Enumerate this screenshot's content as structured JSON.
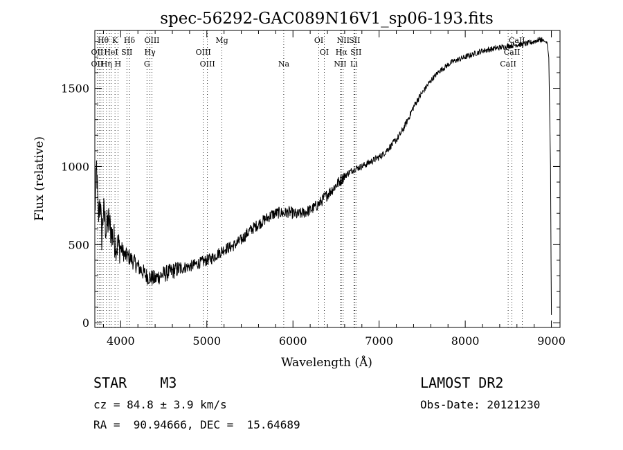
{
  "chart_data": {
    "type": "line",
    "title": "spec-56292-GAC089N16V1_sp06-193.fits",
    "xlabel": "Wavelength (Å)",
    "ylabel": "Flux (relative)",
    "xlim": [
      3700,
      9100
    ],
    "ylim": [
      -30,
      1870
    ],
    "xticks": [
      4000,
      5000,
      6000,
      7000,
      8000,
      9000
    ],
    "xtick_labels": [
      "4000",
      "5000",
      "6000",
      "7000",
      "8000",
      "9000"
    ],
    "yticks": [
      0,
      500,
      1000,
      1500
    ],
    "ytick_labels": [
      "0",
      "500",
      "1000",
      "1500"
    ],
    "grid": false,
    "series": [
      {
        "x": [
          3700,
          3720,
          3740,
          3760,
          3780,
          3800,
          3830,
          3860,
          3900,
          3950,
          4000,
          4050,
          4100,
          4150,
          4200,
          4250,
          4300,
          4350,
          4400,
          4450,
          4500,
          4550,
          4600,
          4650,
          4700,
          4750,
          4800,
          4850,
          4900,
          4950,
          5000,
          5050,
          5100,
          5150,
          5200,
          5250,
          5300,
          5350,
          5400,
          5450,
          5500,
          5550,
          5600,
          5650,
          5700,
          5750,
          5800,
          5850,
          5900,
          5950,
          6000,
          6050,
          6100,
          6150,
          6200,
          6250,
          6300,
          6350,
          6400,
          6450,
          6500,
          6550,
          6600,
          6650,
          6700,
          6750,
          6800,
          6850,
          6900,
          6950,
          7000,
          7050,
          7100,
          7150,
          7200,
          7250,
          7300,
          7350,
          7400,
          7450,
          7500,
          7550,
          7600,
          7650,
          7700,
          7750,
          7800,
          7850,
          7900,
          7950,
          8000,
          8050,
          8100,
          8150,
          8200,
          8250,
          8300,
          8350,
          8400,
          8450,
          8500,
          8550,
          8600,
          8650,
          8700,
          8750,
          8800,
          8850,
          8900,
          8950,
          8970,
          8990,
          9000
        ],
        "y": [
          700,
          1000,
          650,
          800,
          550,
          720,
          600,
          650,
          560,
          500,
          480,
          430,
          420,
          390,
          360,
          330,
          300,
          290,
          280,
          300,
          310,
          320,
          330,
          340,
          350,
          355,
          360,
          370,
          380,
          390,
          400,
          410,
          430,
          450,
          470,
          480,
          490,
          510,
          530,
          560,
          590,
          610,
          630,
          650,
          670,
          690,
          700,
          705,
          700,
          710,
          700,
          690,
          700,
          710,
          720,
          740,
          760,
          790,
          820,
          850,
          880,
          910,
          940,
          960,
          980,
          990,
          1000,
          1015,
          1030,
          1045,
          1060,
          1080,
          1110,
          1140,
          1170,
          1210,
          1260,
          1320,
          1380,
          1430,
          1470,
          1510,
          1550,
          1580,
          1610,
          1630,
          1650,
          1670,
          1680,
          1690,
          1700,
          1710,
          1720,
          1730,
          1740,
          1745,
          1750,
          1755,
          1760,
          1765,
          1770,
          1775,
          1780,
          1780,
          1785,
          1790,
          1800,
          1810,
          1810,
          1790,
          1700,
          1000,
          50
        ]
      }
    ],
    "line_labels": [
      {
        "text": "Hθ",
        "wl": 3797,
        "row": 0
      },
      {
        "text": "K",
        "wl": 3934,
        "row": 0
      },
      {
        "text": "Hδ",
        "wl": 4102,
        "row": 0
      },
      {
        "text": "OIII",
        "wl": 4363,
        "row": 0
      },
      {
        "text": "Mg",
        "wl": 5175,
        "row": 0
      },
      {
        "text": "OI",
        "wl": 6300,
        "row": 0
      },
      {
        "text": "NII",
        "wl": 6583,
        "row": 0
      },
      {
        "text": "SII",
        "wl": 6716,
        "row": 0
      },
      {
        "text": "CaII",
        "wl": 8600,
        "row": 0
      },
      {
        "text": "OII",
        "wl": 3727,
        "row": 1
      },
      {
        "text": "HeI",
        "wl": 3889,
        "row": 1
      },
      {
        "text": "SII",
        "wl": 4072,
        "row": 1
      },
      {
        "text": "Hγ",
        "wl": 4340,
        "row": 1
      },
      {
        "text": "OIII",
        "wl": 4959,
        "row": 1
      },
      {
        "text": "OI",
        "wl": 6363,
        "row": 1
      },
      {
        "text": "Hα",
        "wl": 6563,
        "row": 1
      },
      {
        "text": "SII",
        "wl": 6731,
        "row": 1
      },
      {
        "text": "CaII",
        "wl": 8542,
        "row": 1
      },
      {
        "text": "OII",
        "wl": 3727,
        "row": 2
      },
      {
        "text": "Hη",
        "wl": 3835,
        "row": 2
      },
      {
        "text": "H",
        "wl": 3969,
        "row": 2
      },
      {
        "text": "G",
        "wl": 4305,
        "row": 2
      },
      {
        "text": "OIII",
        "wl": 5007,
        "row": 2
      },
      {
        "text": "Na",
        "wl": 5893,
        "row": 2
      },
      {
        "text": "NII",
        "wl": 6548,
        "row": 2
      },
      {
        "text": "Li",
        "wl": 6708,
        "row": 2
      },
      {
        "text": "CaII",
        "wl": 8498,
        "row": 2
      }
    ],
    "dotted_lines": [
      3727,
      3750,
      3771,
      3797,
      3835,
      3869,
      3889,
      3934,
      3969,
      4072,
      4102,
      4305,
      4340,
      4363,
      4959,
      5007,
      5175,
      5893,
      6300,
      6363,
      6548,
      6563,
      6583,
      6708,
      6716,
      6731,
      8498,
      8542,
      8662
    ]
  },
  "info": {
    "object_line": "STAR    M3",
    "cz_line": "cz = 84.8 ± 3.9 km/s",
    "radec_line": "RA =  90.94666, DEC =  15.64689",
    "survey": "LAMOST DR2",
    "obs_date": "Obs-Date: 20121230"
  }
}
